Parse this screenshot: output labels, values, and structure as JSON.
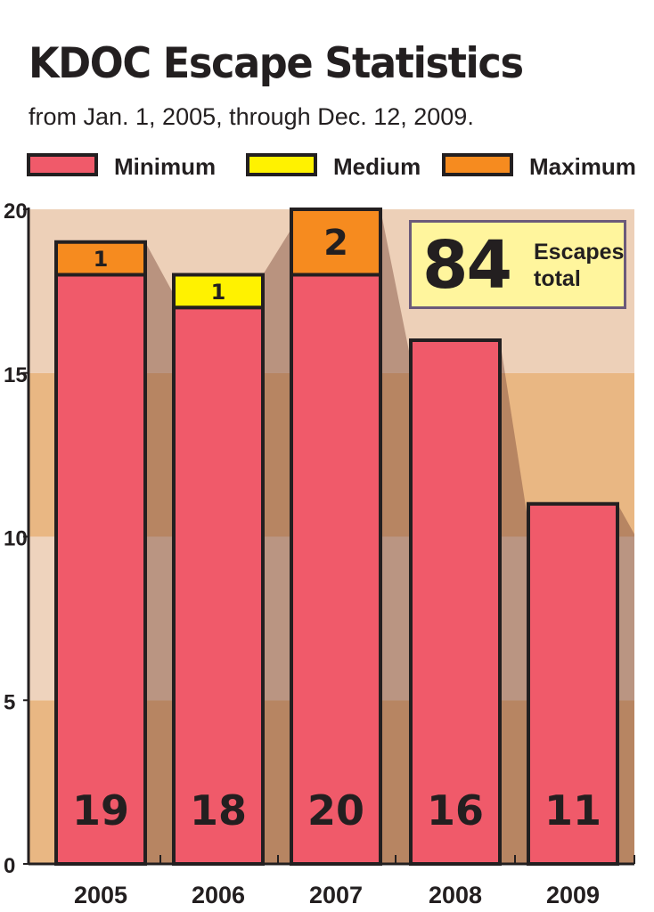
{
  "title": "KDOC Escape Statistics",
  "subtitle": "from Jan. 1, 2005, through Dec. 12, 2009.",
  "legend": [
    {
      "label": "Minimum",
      "color": "#f05a6a"
    },
    {
      "label": "Medium",
      "color": "#fff200"
    },
    {
      "label": "Maximum",
      "color": "#f68b1f"
    }
  ],
  "callout": {
    "number": "84",
    "line1": "Escapes",
    "line2": "total"
  },
  "chart_data": {
    "type": "bar",
    "stacked": true,
    "categories": [
      "2005",
      "2006",
      "2007",
      "2008",
      "2009"
    ],
    "series": [
      {
        "name": "Minimum",
        "values": [
          18,
          17,
          18,
          16,
          11
        ],
        "color": "#f05a6a"
      },
      {
        "name": "Medium",
        "values": [
          0,
          1,
          0,
          0,
          0
        ],
        "color": "#fff200"
      },
      {
        "name": "Maximum",
        "values": [
          1,
          0,
          2,
          0,
          0
        ],
        "color": "#f68b1f"
      }
    ],
    "totals": [
      19,
      18,
      20,
      16,
      11
    ],
    "segment_labels": [
      "1",
      "1",
      "2"
    ],
    "ylim": [
      0,
      20
    ],
    "yticks": [
      0,
      5,
      10,
      15,
      20
    ],
    "xlabel": "",
    "ylabel": "",
    "grid": false,
    "legend_position": "top"
  }
}
